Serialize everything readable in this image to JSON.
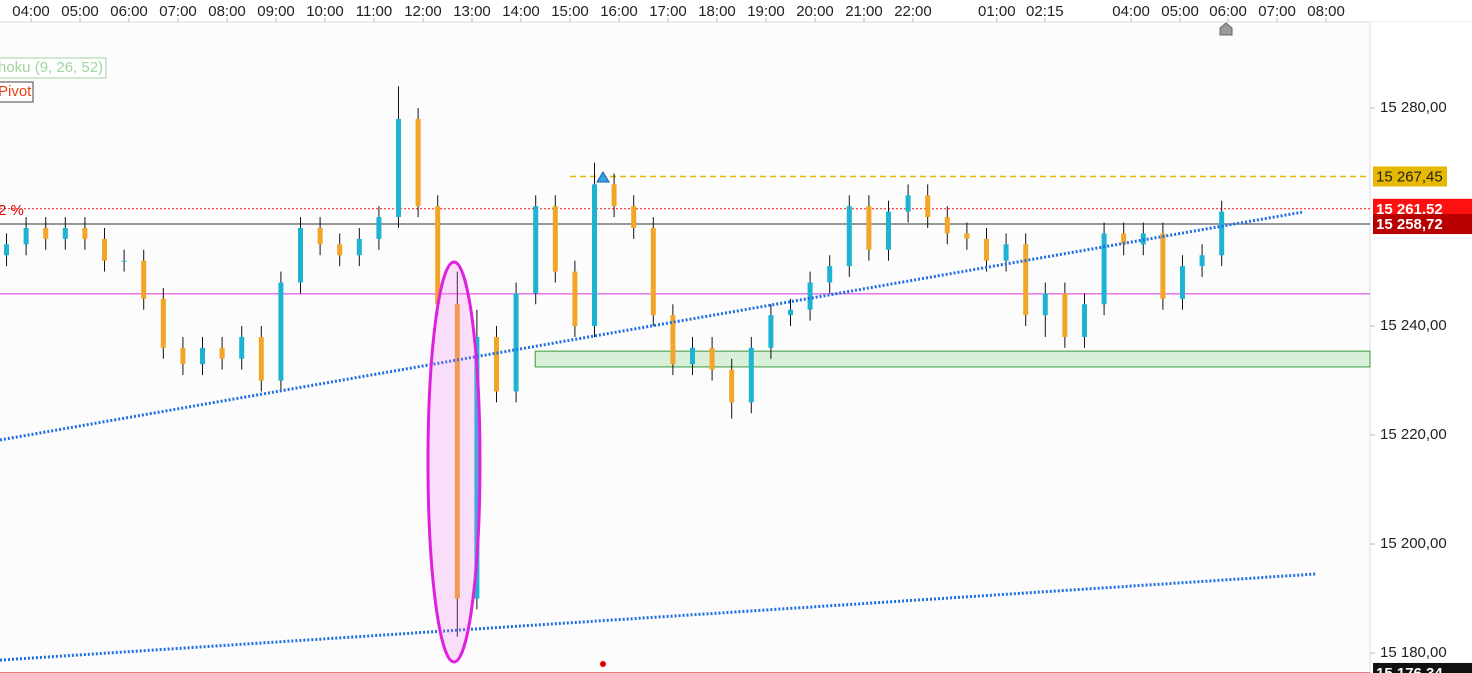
{
  "chart_data": {
    "type": "candlestick",
    "x": [
      -0.5,
      -0.1,
      0.3,
      0.7,
      1.1,
      1.5,
      1.9,
      2.3,
      2.7,
      3.1,
      3.5,
      3.9,
      4.3,
      4.7,
      5.1,
      5.5,
      5.9,
      6.3,
      6.7,
      7.1,
      7.5,
      7.9,
      8.3,
      8.7,
      9.1,
      9.5,
      9.9,
      10.3,
      10.7,
      11.1,
      11.5,
      11.9,
      12.3,
      12.7,
      13.1,
      13.5,
      13.9,
      14.3,
      14.7,
      15.1,
      15.5,
      15.9,
      16.3,
      16.7,
      17.1,
      17.5,
      17.9,
      18.3,
      18.7,
      19.1,
      19.5,
      19.9,
      20.3,
      20.7,
      21.1,
      21.5,
      21.9,
      22.3,
      22.7,
      23.1,
      23.5,
      23.9,
      24.3
    ],
    "open": [
      15253,
      15255,
      15258,
      15256,
      15258,
      15256,
      15252,
      15252,
      15245,
      15236,
      15233,
      15236,
      15234,
      15238,
      15230,
      15248,
      15258,
      15255,
      15253,
      15256,
      15260,
      15278,
      15262,
      15244,
      15190,
      15238,
      15228,
      15246,
      15262,
      15250,
      15240,
      15266,
      15262,
      15258,
      15242,
      15233,
      15236,
      15232,
      15226,
      15236,
      15242,
      15243,
      15248,
      15251,
      15262,
      15254,
      15261,
      15264,
      15260,
      15257,
      15256,
      15252,
      15255,
      15242,
      15246,
      15238,
      15244,
      15257,
      15255,
      15257,
      15245,
      15251,
      15253
    ],
    "high": [
      15257,
      15260,
      15260,
      15260,
      15260,
      15258,
      15254,
      15254,
      15247,
      15238,
      15238,
      15238,
      15240,
      15240,
      15250,
      15260,
      15260,
      15257,
      15258,
      15262,
      15284,
      15280,
      15264,
      15250,
      15243,
      15240,
      15248,
      15264,
      15264,
      15252,
      15270,
      15268,
      15264,
      15260,
      15244,
      15238,
      15238,
      15234,
      15238,
      15244,
      15245,
      15250,
      15253,
      15264,
      15264,
      15263,
      15266,
      15266,
      15262,
      15259,
      15258,
      15257,
      15257,
      15248,
      15248,
      15246,
      15259,
      15259,
      15259,
      15259,
      15253,
      15255,
      15263
    ],
    "low": [
      15251,
      15253,
      15254,
      15254,
      15254,
      15250,
      15250,
      15243,
      15234,
      15231,
      15231,
      15232,
      15232,
      15228,
      15228,
      15246,
      15253,
      15251,
      15251,
      15254,
      15258,
      15260,
      15242,
      15183,
      15188,
      15226,
      15226,
      15244,
      15248,
      15238,
      15238,
      15260,
      15256,
      15240,
      15231,
      15231,
      15230,
      15223,
      15224,
      15234,
      15240,
      15241,
      15246,
      15249,
      15252,
      15252,
      15259,
      15258,
      15255,
      15254,
      15250,
      15250,
      15240,
      15238,
      15236,
      15236,
      15242,
      15253,
      15253,
      15243,
      15243,
      15249,
      15251
    ],
    "close": [
      15255,
      15258,
      15256,
      15258,
      15256,
      15252,
      15252,
      15245,
      15236,
      15233,
      15236,
      15234,
      15238,
      15230,
      15248,
      15258,
      15255,
      15253,
      15256,
      15260,
      15278,
      15262,
      15244,
      15190,
      15238,
      15228,
      15246,
      15262,
      15250,
      15240,
      15266,
      15262,
      15258,
      15242,
      15233,
      15236,
      15232,
      15226,
      15236,
      15242,
      15243,
      15248,
      15251,
      15262,
      15254,
      15261,
      15264,
      15260,
      15257,
      15256,
      15252,
      15255,
      15242,
      15246,
      15238,
      15244,
      15257,
      15255,
      15257,
      15245,
      15251,
      15253,
      15261
    ],
    "up_color": "#1cb4d2",
    "down_color": "#f2a527",
    "xlim": [
      -0.633,
      27.327
    ],
    "ylim": [
      15177.8,
      15295.8
    ],
    "xticks": [
      {
        "value": 0,
        "label": "04:00"
      },
      {
        "value": 1,
        "label": "05:00"
      },
      {
        "value": 2,
        "label": "06:00"
      },
      {
        "value": 3,
        "label": "07:00"
      },
      {
        "value": 4,
        "label": "08:00"
      },
      {
        "value": 5,
        "label": "09:00"
      },
      {
        "value": 6,
        "label": "10:00"
      },
      {
        "value": 7,
        "label": "11:00"
      },
      {
        "value": 8,
        "label": "12:00"
      },
      {
        "value": 9,
        "label": "13:00"
      },
      {
        "value": 10,
        "label": "14:00"
      },
      {
        "value": 11,
        "label": "15:00"
      },
      {
        "value": 12,
        "label": "16:00"
      },
      {
        "value": 13,
        "label": "17:00"
      },
      {
        "value": 14,
        "label": "18:00"
      },
      {
        "value": 15,
        "label": "19:00"
      },
      {
        "value": 16,
        "label": "20:00"
      },
      {
        "value": 17,
        "label": "21:00"
      },
      {
        "value": 18,
        "label": "22:00"
      },
      {
        "value": 19.71,
        "label": "01:00"
      },
      {
        "value": 20.69,
        "label": "02:15"
      },
      {
        "value": 22.45,
        "label": "04:00"
      },
      {
        "value": 23.45,
        "label": "05:00"
      },
      {
        "value": 24.43,
        "label": "06:00"
      },
      {
        "value": 25.43,
        "label": "07:00"
      },
      {
        "value": 26.43,
        "label": "08:00"
      }
    ],
    "yticks": [
      {
        "value": 15280,
        "label": "15 280,00"
      },
      {
        "value": 15240,
        "label": "15 240,00"
      },
      {
        "value": 15220,
        "label": "15 220,00"
      },
      {
        "value": 15200,
        "label": "15 200,00"
      },
      {
        "value": 15180,
        "label": "15 180,00"
      }
    ],
    "levels": [
      {
        "value": 15245.9,
        "color": "#e030e0",
        "style": "solid"
      },
      {
        "value": 15267.45,
        "label": "15 267,45",
        "color": "#e6b800",
        "style": "dashed",
        "from": 11.0
      },
      {
        "value": 15261.52,
        "label": "15 261,52",
        "color": "#ff1010",
        "style": "dotted"
      },
      {
        "value": 15258.72,
        "label": "15 258,72",
        "color": "#b80000",
        "style": "solid"
      },
      {
        "value": 15176.34,
        "label": "15 176,34",
        "color": "#e00000",
        "style": "solid"
      }
    ],
    "trendlines": [
      {
        "x": [
          -0.633,
          25.94
        ],
        "y": [
          15219.1,
          15260.9
        ],
        "color": "#1f6fe0"
      },
      {
        "x": [
          -0.633,
          26.22
        ],
        "y": [
          15178.7,
          15194.5
        ],
        "color": "#1f6fe0"
      }
    ],
    "zone": {
      "x": [
        10.29,
        27.327
      ],
      "y": [
        15232.5,
        15235.4
      ],
      "color": "#bfe6bf"
    },
    "indicators": [
      "hoku (9, 26, 52)",
      "Pivot"
    ],
    "note": "2 %"
  }
}
